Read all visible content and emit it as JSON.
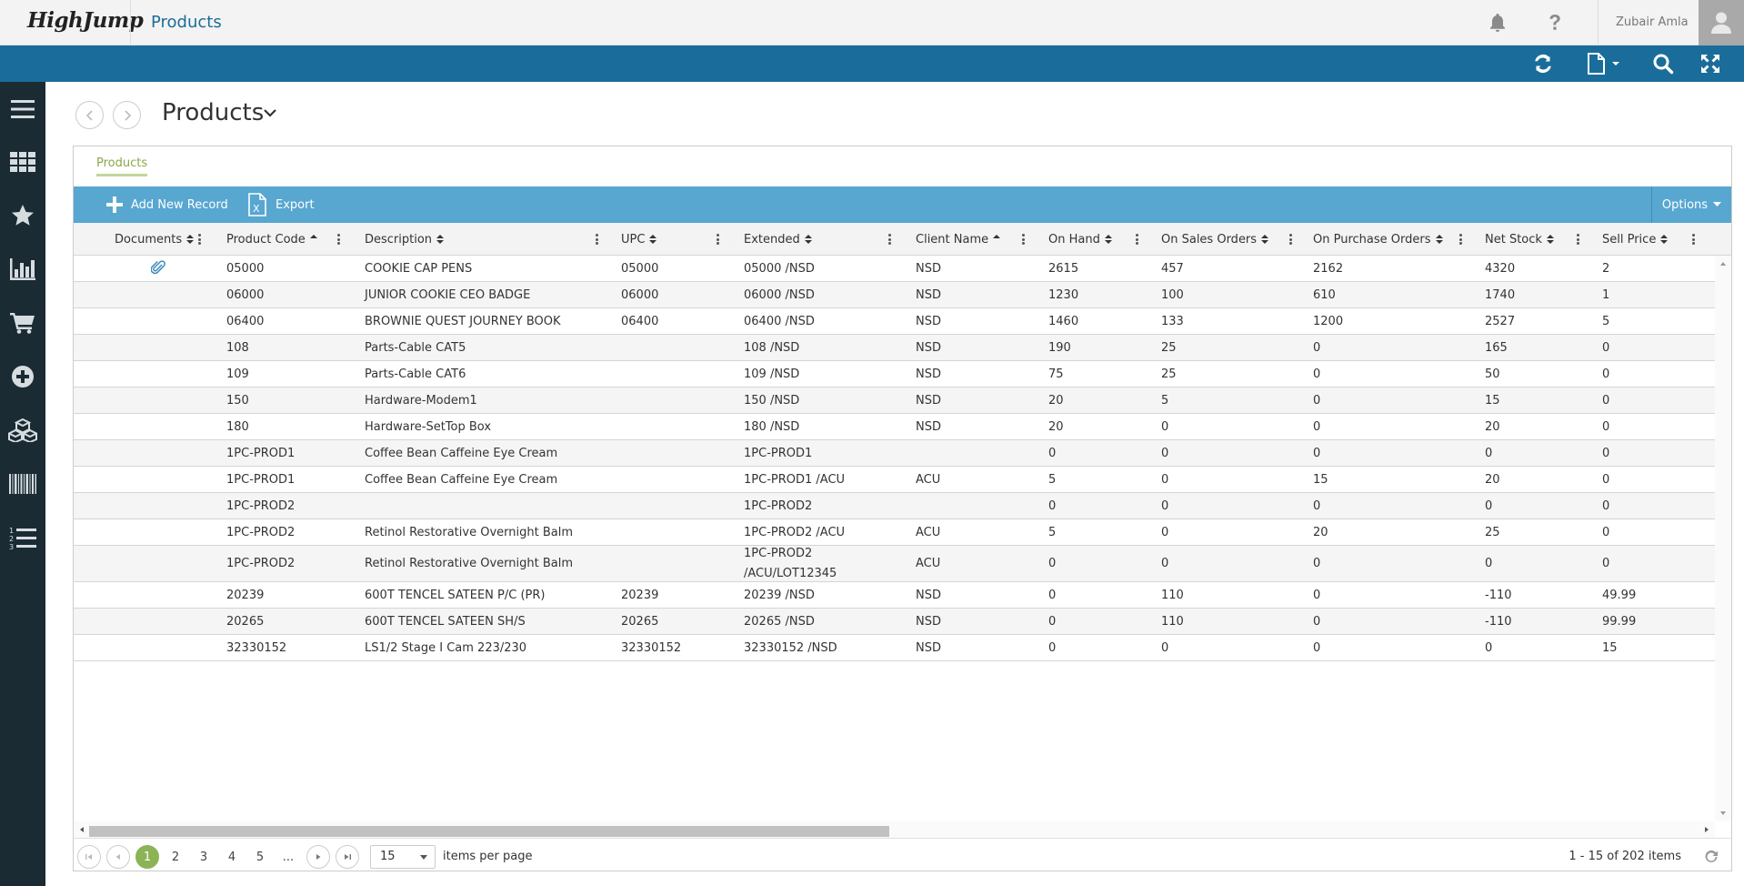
{
  "header": {
    "logo": "HighJump",
    "app_title": "Products",
    "user_name": "Zubair Amla",
    "icons": [
      "bell-icon",
      "help-icon",
      "user-avatar-icon"
    ]
  },
  "toolbar": {
    "icons": [
      "refresh-icon",
      "document-dropdown-icon",
      "search-icon",
      "expand-icon"
    ]
  },
  "sidebar": {
    "icons": [
      "menu-icon",
      "apps-grid-icon",
      "favorites-star-icon",
      "reports-chart-icon",
      "cart-icon",
      "add-circle-icon",
      "boxes-icon",
      "barcode-icon",
      "numbered-list-icon"
    ]
  },
  "page": {
    "title": "Products",
    "tab_label": "Products"
  },
  "grid_toolbar": {
    "add_label": "Add New Record",
    "export_label": "Export",
    "options_label": "Options"
  },
  "grid": {
    "columns": [
      "Documents",
      "Product Code",
      "Description",
      "UPC",
      "Extended",
      "Client Name",
      "On Hand",
      "On Sales Orders",
      "On Purchase Orders",
      "Net Stock",
      "Sell Price"
    ],
    "rows": [
      {
        "doc": true,
        "code": "05000",
        "desc": "COOKIE CAP PENS",
        "upc": "05000",
        "ext": [
          "05000 /NSD"
        ],
        "client": "NSD",
        "onhand": "2615",
        "sales": "457",
        "purchase": "2162",
        "net": "4320",
        "price": "2"
      },
      {
        "doc": false,
        "code": "06000",
        "desc": "JUNIOR COOKIE CEO BADGE",
        "upc": "06000",
        "ext": [
          "06000 /NSD"
        ],
        "client": "NSD",
        "onhand": "1230",
        "sales": "100",
        "purchase": "610",
        "net": "1740",
        "price": "1"
      },
      {
        "doc": false,
        "code": "06400",
        "desc": "BROWNIE QUEST JOURNEY BOOK",
        "upc": "06400",
        "ext": [
          "06400 /NSD"
        ],
        "client": "NSD",
        "onhand": "1460",
        "sales": "133",
        "purchase": "1200",
        "net": "2527",
        "price": "5"
      },
      {
        "doc": false,
        "code": "108",
        "desc": "Parts-Cable CAT5",
        "upc": "",
        "ext": [
          "108 /NSD"
        ],
        "client": "NSD",
        "onhand": "190",
        "sales": "25",
        "purchase": "0",
        "net": "165",
        "price": "0"
      },
      {
        "doc": false,
        "code": "109",
        "desc": "Parts-Cable CAT6",
        "upc": "",
        "ext": [
          "109 /NSD"
        ],
        "client": "NSD",
        "onhand": "75",
        "sales": "25",
        "purchase": "0",
        "net": "50",
        "price": "0"
      },
      {
        "doc": false,
        "code": "150",
        "desc": "Hardware-Modem1",
        "upc": "",
        "ext": [
          "150 /NSD"
        ],
        "client": "NSD",
        "onhand": "20",
        "sales": "5",
        "purchase": "0",
        "net": "15",
        "price": "0"
      },
      {
        "doc": false,
        "code": "180",
        "desc": "Hardware-SetTop Box",
        "upc": "",
        "ext": [
          "180 /NSD"
        ],
        "client": "NSD",
        "onhand": "20",
        "sales": "0",
        "purchase": "0",
        "net": "20",
        "price": "0"
      },
      {
        "doc": false,
        "code": "1PC-PROD1",
        "desc": "Coffee Bean Caffeine Eye Cream",
        "upc": "",
        "ext": [
          "1PC-PROD1"
        ],
        "client": "",
        "onhand": "0",
        "sales": "0",
        "purchase": "0",
        "net": "0",
        "price": "0"
      },
      {
        "doc": false,
        "code": "1PC-PROD1",
        "desc": "Coffee Bean Caffeine Eye Cream",
        "upc": "",
        "ext": [
          "1PC-PROD1 /ACU"
        ],
        "client": "ACU",
        "onhand": "5",
        "sales": "0",
        "purchase": "15",
        "net": "20",
        "price": "0"
      },
      {
        "doc": false,
        "code": "1PC-PROD2",
        "desc": "",
        "upc": "",
        "ext": [
          "1PC-PROD2"
        ],
        "client": "",
        "onhand": "0",
        "sales": "0",
        "purchase": "0",
        "net": "0",
        "price": "0"
      },
      {
        "doc": false,
        "code": "1PC-PROD2",
        "desc": "Retinol Restorative Overnight Balm",
        "upc": "",
        "ext": [
          "1PC-PROD2 /ACU"
        ],
        "client": "ACU",
        "onhand": "5",
        "sales": "0",
        "purchase": "20",
        "net": "25",
        "price": "0"
      },
      {
        "doc": false,
        "code": "1PC-PROD2",
        "desc": "Retinol Restorative Overnight Balm",
        "upc": "",
        "ext": [
          "1PC-PROD2",
          "/ACU/LOT12345"
        ],
        "client": "ACU",
        "onhand": "0",
        "sales": "0",
        "purchase": "0",
        "net": "0",
        "price": "0"
      },
      {
        "doc": false,
        "code": "20239",
        "desc": "600T TENCEL SATEEN P/C (PR)",
        "upc": "20239",
        "ext": [
          "20239 /NSD"
        ],
        "client": "NSD",
        "onhand": "0",
        "sales": "110",
        "purchase": "0",
        "net": "-110",
        "price": "49.99"
      },
      {
        "doc": false,
        "code": "20265",
        "desc": "600T TENCEL SATEEN SH/S",
        "upc": "20265",
        "ext": [
          "20265 /NSD"
        ],
        "client": "NSD",
        "onhand": "0",
        "sales": "110",
        "purchase": "0",
        "net": "-110",
        "price": "99.99"
      },
      {
        "doc": false,
        "code": "32330152",
        "desc": "LS1/2 Stage I Cam 223/230",
        "upc": "32330152",
        "ext": [
          "32330152 /NSD"
        ],
        "client": "NSD",
        "onhand": "0",
        "sales": "0",
        "purchase": "0",
        "net": "0",
        "price": "15"
      }
    ]
  },
  "pager": {
    "pages": [
      "1",
      "2",
      "3",
      "4",
      "5",
      "..."
    ],
    "current_page": "1",
    "page_size": "15",
    "per_page_label": "items per page",
    "summary": "1 - 15 of 202 items"
  },
  "colors": {
    "toolbar_blue": "#1a6d9a",
    "grid_toolbar_blue": "#57a7d1",
    "sidebar_dark": "#1b2b33",
    "accent_green": "#8cb356",
    "title_blue": "#1a6d9a"
  }
}
